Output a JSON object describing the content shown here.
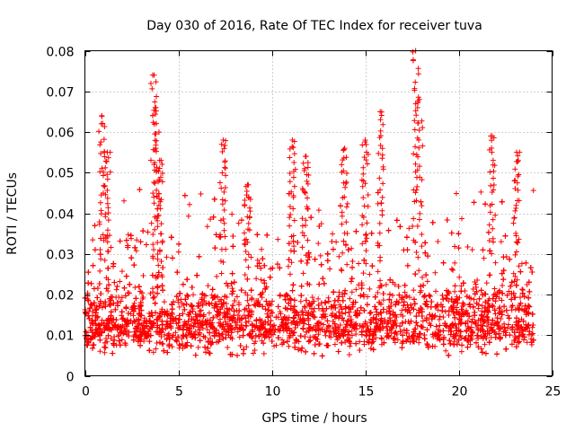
{
  "chart_data": {
    "type": "scatter",
    "title": "Day 030 of 2016, Rate Of TEC Index for receiver tuva",
    "xlabel": "GPS time / hours",
    "ylabel": "ROTI / TECUs",
    "xlim": [
      0,
      25
    ],
    "ylim": [
      0,
      0.08
    ],
    "x_ticks": [
      "0",
      "5",
      "10",
      "15",
      "20",
      "25"
    ],
    "y_ticks": [
      "0",
      "0.01",
      "0.02",
      "0.03",
      "0.04",
      "0.05",
      "0.06",
      "0.07",
      "0.08"
    ],
    "grid": true,
    "marker": "plus",
    "color": "#ff0000",
    "series": [
      {
        "x_range": [
          0,
          24
        ],
        "baseline": 0.013,
        "typical_range": [
          0.005,
          0.035
        ],
        "peaks": [
          {
            "x": 0.9,
            "y": 0.064
          },
          {
            "x": 1.2,
            "y": 0.055
          },
          {
            "x": 3.7,
            "y": 0.074
          },
          {
            "x": 3.8,
            "y": 0.066
          },
          {
            "x": 4.0,
            "y": 0.053
          },
          {
            "x": 7.4,
            "y": 0.058
          },
          {
            "x": 8.7,
            "y": 0.047
          },
          {
            "x": 11.1,
            "y": 0.058
          },
          {
            "x": 11.8,
            "y": 0.054
          },
          {
            "x": 13.9,
            "y": 0.056
          },
          {
            "x": 15.0,
            "y": 0.058
          },
          {
            "x": 15.8,
            "y": 0.065
          },
          {
            "x": 17.7,
            "y": 0.08
          },
          {
            "x": 17.9,
            "y": 0.068
          },
          {
            "x": 21.8,
            "y": 0.059
          },
          {
            "x": 23.1,
            "y": 0.055
          }
        ]
      }
    ]
  }
}
